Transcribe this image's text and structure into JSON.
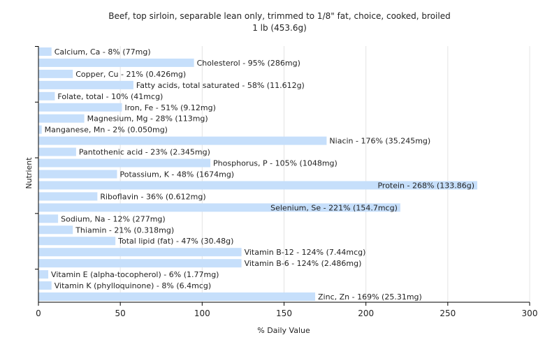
{
  "chart_data": {
    "type": "bar",
    "orientation": "horizontal",
    "title": "Beef, top sirloin, separable lean only, trimmed to 1/8\" fat, choice, cooked, broiled",
    "subtitle": "1 lb (453.6g)",
    "xlabel": "% Daily Value",
    "ylabel": "Nutrient",
    "xlim": [
      0,
      300
    ],
    "xticks": [
      0,
      50,
      100,
      150,
      200,
      250,
      300
    ],
    "grid": true,
    "bar_color": "#c6dffb",
    "categories": [
      "Calcium, Ca - 8% (77mg)",
      "Cholesterol - 95% (286mg)",
      "Copper, Cu - 21% (0.426mg)",
      "Fatty acids, total saturated - 58% (11.612g)",
      "Folate, total - 10% (41mcg)",
      "Iron, Fe - 51% (9.12mg)",
      "Magnesium, Mg - 28% (113mg)",
      "Manganese, Mn - 2% (0.050mg)",
      "Niacin - 176% (35.245mg)",
      "Pantothenic acid - 23% (2.345mg)",
      "Phosphorus, P - 105% (1048mg)",
      "Potassium, K - 48% (1674mg)",
      "Protein - 268% (133.86g)",
      "Riboflavin - 36% (0.612mg)",
      "Selenium, Se - 221% (154.7mcg)",
      "Sodium, Na - 12% (277mg)",
      "Thiamin - 21% (0.318mg)",
      "Total lipid (fat) - 47% (30.48g)",
      "Vitamin B-12 - 124% (7.44mcg)",
      "Vitamin B-6 - 124% (2.486mg)",
      "Vitamin E (alpha-tocopherol) - 6% (1.77mg)",
      "Vitamin K (phylloquinone) - 8% (6.4mcg)",
      "Zinc, Zn - 169% (25.31mg)"
    ],
    "values": [
      8,
      95,
      21,
      58,
      10,
      51,
      28,
      2,
      176,
      23,
      105,
      48,
      268,
      36,
      221,
      12,
      21,
      47,
      124,
      124,
      6,
      8,
      169
    ]
  }
}
